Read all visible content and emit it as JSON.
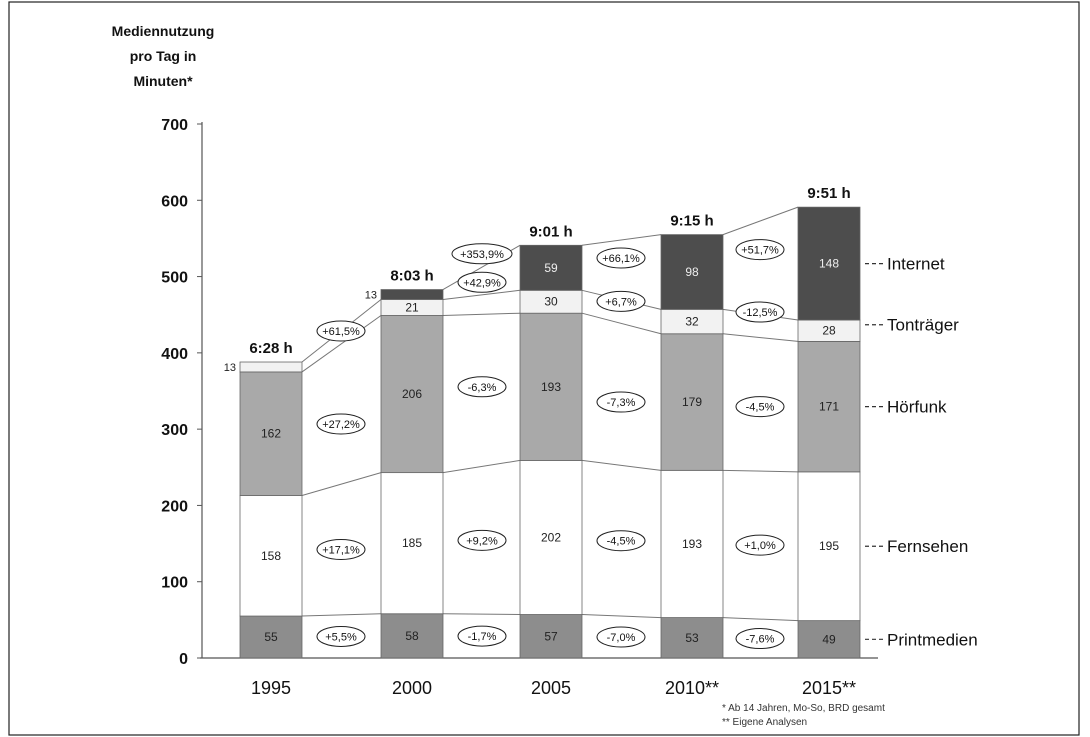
{
  "chart_data": {
    "type": "bar",
    "stacked": true,
    "ylabel": "Mediennutzung pro Tag in Minuten*",
    "ylabel_lines": [
      "Mediennutzung",
      "pro Tag in",
      "Minuten*"
    ],
    "ylim": [
      0,
      700
    ],
    "yticks": [
      0,
      100,
      200,
      300,
      400,
      500,
      600,
      700
    ],
    "categories": [
      "1995",
      "2000",
      "2005",
      "2010**",
      "2015**"
    ],
    "totals": [
      "6:28 h",
      "8:03 h",
      "9:01 h",
      "9:15 h",
      "9:51 h"
    ],
    "series": [
      {
        "name": "Printmedien",
        "values": [
          55,
          58,
          57,
          53,
          49
        ],
        "color": "#8d8d8d"
      },
      {
        "name": "Fernsehen",
        "values": [
          158,
          185,
          202,
          193,
          195
        ],
        "color": "#ffffff"
      },
      {
        "name": "Hörfunk",
        "values": [
          162,
          206,
          193,
          179,
          171
        ],
        "color": "#a9a9a9"
      },
      {
        "name": "Tonträger",
        "values": [
          13,
          21,
          30,
          32,
          28
        ],
        "color": "#f2f2f2"
      },
      {
        "name": "Internet",
        "values": [
          0,
          13,
          59,
          98,
          148
        ],
        "color": "#4d4d4d"
      }
    ],
    "series_labels": [
      "Printmedien",
      "Fernsehen",
      "Hörfunk",
      "Tonträger",
      "Internet"
    ],
    "value_labels": [
      [
        "55",
        "158",
        "162",
        "13",
        ""
      ],
      [
        "58",
        "185",
        "206",
        "21",
        "13"
      ],
      [
        "57",
        "202",
        "193",
        "30",
        "59"
      ],
      [
        "53",
        "193",
        "179",
        "32",
        "98"
      ],
      [
        "49",
        "195",
        "171",
        "28",
        "148"
      ]
    ],
    "changes": {
      "Printmedien": [
        "+5,5%",
        "-1,7%",
        "-7,0%",
        "-7,6%"
      ],
      "Fernsehen": [
        "+17,1%",
        "+9,2%",
        "-4,5%",
        "+1,0%"
      ],
      "Hörfunk": [
        "+27,2%",
        "-6,3%",
        "-7,3%",
        "-4,5%"
      ],
      "Tonträger": [
        "+61,5%",
        "+42,9%",
        "+6,7%",
        "-12,5%"
      ],
      "Internet": [
        "",
        "+353,9%",
        "+66,1%",
        "+51,7%"
      ]
    },
    "footnotes": [
      "* Ab 14 Jahren, Mo-So, BRD gesamt",
      "** Eigene Analysen"
    ],
    "grid": false,
    "legend": "right"
  }
}
